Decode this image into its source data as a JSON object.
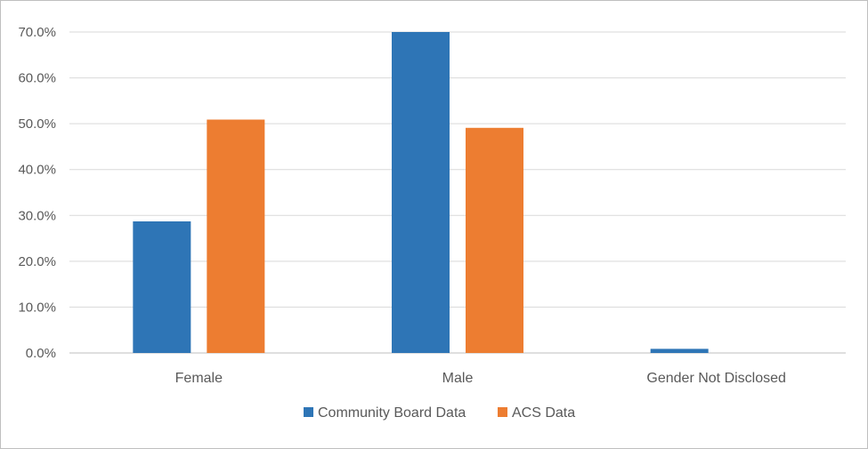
{
  "chart_data": {
    "type": "bar",
    "title": "",
    "xlabel": "",
    "ylabel": "",
    "categories": [
      "Female",
      "Male",
      "Gender Not Disclosed"
    ],
    "series": [
      {
        "name": "Community Board Data",
        "values": [
          28.7,
          70.0,
          0.9
        ],
        "color": "#2e75b6"
      },
      {
        "name": "ACS Data",
        "values": [
          50.9,
          49.1,
          0.0
        ],
        "color": "#ed7d31"
      }
    ],
    "ylim": [
      0,
      70
    ],
    "yticks": [
      0,
      10,
      20,
      30,
      40,
      50,
      60,
      70
    ],
    "ytick_labels": [
      "0.0%",
      "10.0%",
      "20.0%",
      "30.0%",
      "40.0%",
      "50.0%",
      "60.0%",
      "70.0%"
    ],
    "grid": true,
    "legend": "bottom"
  }
}
